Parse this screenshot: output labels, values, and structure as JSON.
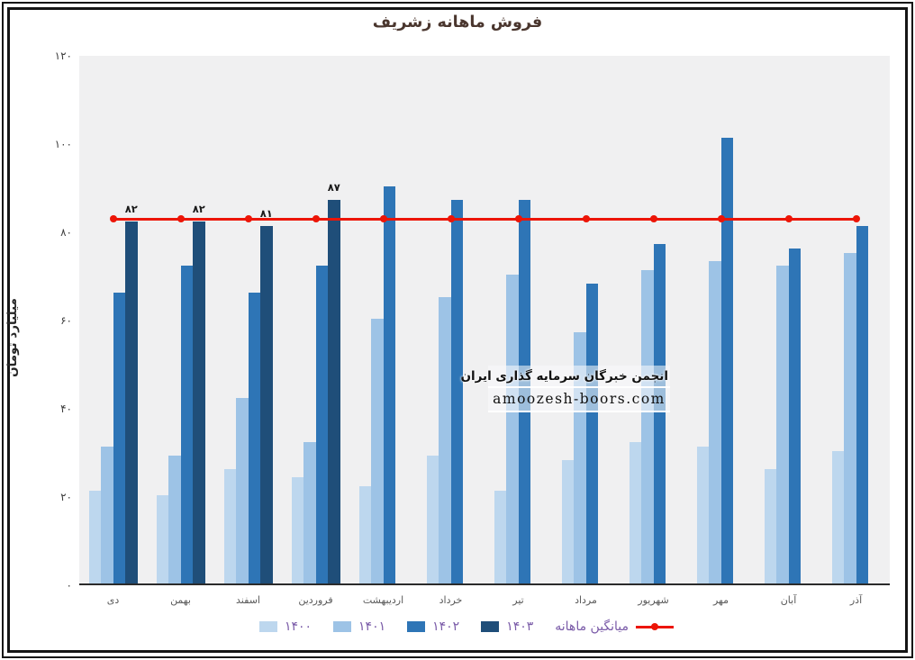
{
  "title": "فروش ماهانه زشریف",
  "colors": {
    "s1400": "#bdd7ee",
    "s1401": "#9dc3e6",
    "s1402": "#2e75b6",
    "s1403": "#1f4e79",
    "avg_line": "#ec1507",
    "plot_bg": "#f0f0f1",
    "title_text": "#4a362e",
    "legend_text": "#7a5ba8"
  },
  "y_axis": {
    "title": "میلیارد تومان",
    "ticks": [
      {
        "label": "۰",
        "value": 0
      },
      {
        "label": "۲۰",
        "value": 20
      },
      {
        "label": "۴۰",
        "value": 40
      },
      {
        "label": "۶۰",
        "value": 60
      },
      {
        "label": "۸۰",
        "value": 80
      },
      {
        "label": "۱۰۰",
        "value": 100
      },
      {
        "label": "۱۲۰",
        "value": 120
      }
    ]
  },
  "watermark": {
    "line1": "انجمن خبرگان سرمایه گذاری ایران",
    "line2": "amoozesh-boors.com"
  },
  "legend": {
    "year_items": [
      {
        "label": "۱۴۰۰",
        "color": "#bdd7ee"
      },
      {
        "label": "۱۴۰۱",
        "color": "#9dc3e6"
      },
      {
        "label": "۱۴۰۲",
        "color": "#2e75b6"
      },
      {
        "label": "۱۴۰۳",
        "color": "#1f4e79"
      }
    ],
    "line_item": {
      "label": "میانگین ماهانه",
      "color": "#ec1507"
    }
  },
  "chart_data": {
    "type": "bar",
    "title": "فروش ماهانه زشریف",
    "ylabel": "میلیارد تومان",
    "ylim": [
      0,
      120
    ],
    "grid": false,
    "legend_position": "bottom",
    "categories": [
      "دی",
      "بهمن",
      "اسفند",
      "فروردین",
      "اردیبهشت",
      "خرداد",
      "تیر",
      "مرداد",
      "شهریور",
      "مهر",
      "آبان",
      "آذر"
    ],
    "series": [
      {
        "name": "۱۴۰۰",
        "color": "#bdd7ee",
        "values": [
          21,
          20,
          26,
          24,
          22,
          29,
          21,
          28,
          32,
          31,
          26,
          30
        ]
      },
      {
        "name": "۱۴۰۱",
        "color": "#9dc3e6",
        "values": [
          31,
          29,
          42,
          32,
          60,
          65,
          70,
          57,
          71,
          73,
          72,
          75
        ]
      },
      {
        "name": "۱۴۰۲",
        "color": "#2e75b6",
        "values": [
          66,
          72,
          66,
          72,
          90,
          87,
          87,
          68,
          77,
          101,
          76,
          81
        ]
      },
      {
        "name": "۱۴۰۳",
        "color": "#1f4e79",
        "values": [
          82,
          82,
          81,
          87,
          null,
          null,
          null,
          null,
          null,
          null,
          null,
          null
        ],
        "data_labels": [
          "۸۲",
          "۸۲",
          "۸۱",
          "۸۷"
        ]
      }
    ],
    "line_series": {
      "name": "میانگین ماهانه",
      "color": "#ec1507",
      "value": 83,
      "values": [
        83,
        83,
        83,
        83,
        83,
        83,
        83,
        83,
        83,
        83,
        83,
        83
      ]
    }
  }
}
